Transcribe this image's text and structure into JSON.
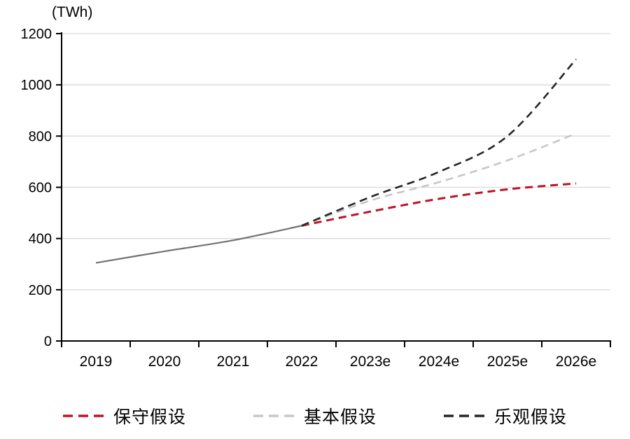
{
  "chart_data": {
    "type": "line",
    "unit": "(TWh)",
    "categories": [
      "2019",
      "2020",
      "2021",
      "2022",
      "2023e",
      "2024e",
      "2025e",
      "2026e"
    ],
    "yticks": [
      0,
      200,
      400,
      600,
      800,
      1000,
      1200
    ],
    "ylim": [
      0,
      1200
    ],
    "grid": "horizontal",
    "legend_position": "bottom",
    "axis_color": "#000000",
    "gridline_color": "#D9D9D9",
    "historical": {
      "style": "solid",
      "color": "#737373",
      "width": 2.2,
      "values": [
        305,
        350,
        393,
        450,
        null,
        null,
        null,
        null
      ]
    },
    "series": [
      {
        "name": "保守假设",
        "style": "dashed",
        "color": "#BE1328",
        "width": 3,
        "values": [
          null,
          null,
          null,
          450,
          505,
          555,
          592,
          615
        ]
      },
      {
        "name": "基本假设",
        "style": "dashed",
        "color": "#C7C7C7",
        "width": 2.6,
        "values": [
          null,
          null,
          null,
          450,
          548,
          620,
          705,
          810
        ]
      },
      {
        "name": "乐观假设",
        "style": "dashed",
        "color": "#262626",
        "width": 2.6,
        "values": [
          null,
          null,
          null,
          450,
          562,
          660,
          800,
          1100
        ]
      }
    ]
  }
}
